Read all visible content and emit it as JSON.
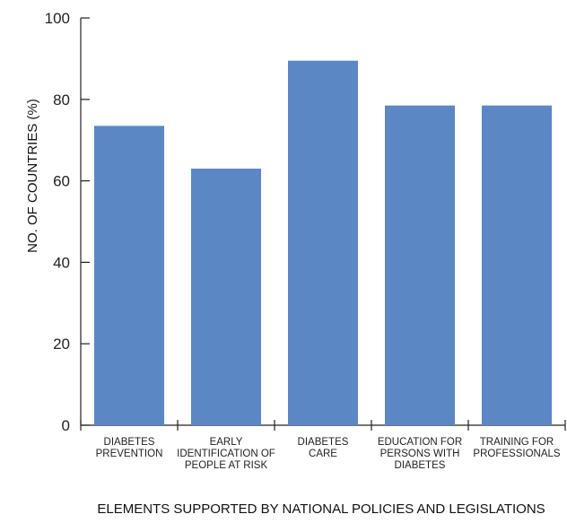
{
  "chart_data": {
    "type": "bar",
    "categories": [
      "DIABETES PREVENTION",
      "EARLY IDENTIFICATION OF PEOPLE AT RISK",
      "DIABETES CARE",
      "EDUCATION FOR PERSONS WITH DIABETES",
      "TRAINING FOR PROFESSIONALS"
    ],
    "category_lines": [
      [
        "DIABETES",
        "PREVENTION"
      ],
      [
        "EARLY",
        "IDENTIFICATION OF",
        "PEOPLE AT RISK"
      ],
      [
        "DIABETES",
        "CARE"
      ],
      [
        "EDUCATION FOR",
        "PERSONS WITH",
        "DIABETES"
      ],
      [
        "TRAINING FOR",
        "PROFESSIONALS"
      ]
    ],
    "values": [
      73.5,
      63,
      89.5,
      78.5,
      78.5
    ],
    "xlabel": "ELEMENTS SUPPORTED BY NATIONAL POLICIES AND LEGISLATIONS",
    "ylabel": "NO. OF COUNTRIES (%)",
    "ylim": [
      0,
      100
    ],
    "yticks": [
      "0",
      "20",
      "40",
      "60",
      "80",
      "100"
    ],
    "grid": false,
    "colors": {
      "bar": "#5b87c5",
      "axis": "#222222"
    }
  }
}
